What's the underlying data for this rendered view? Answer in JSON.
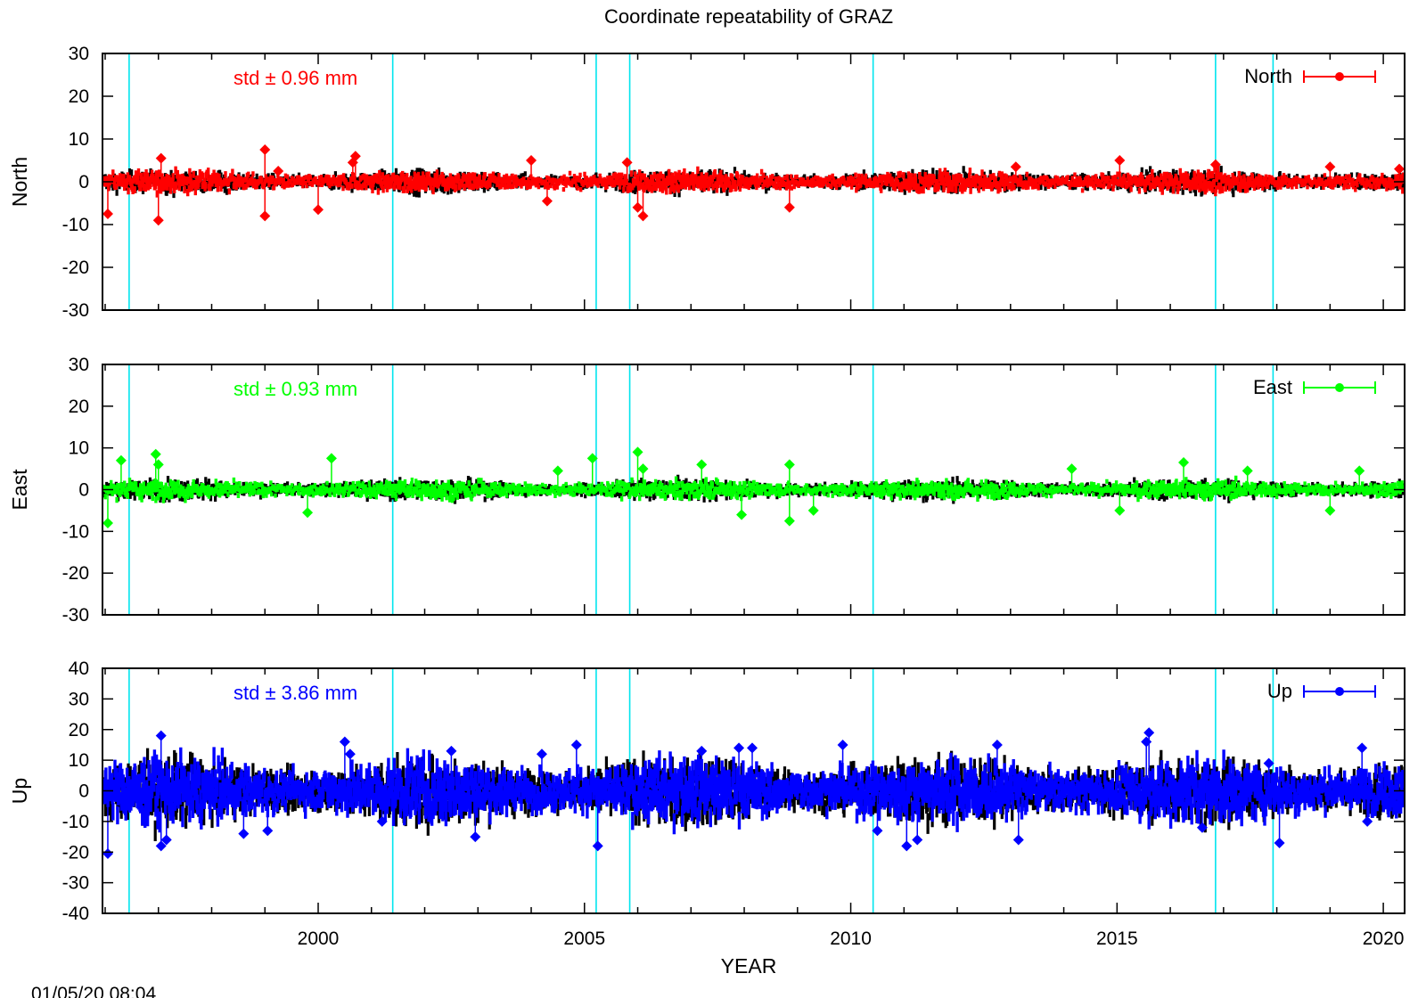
{
  "chart_data": {
    "type": "scatter",
    "title": "Coordinate repeatability of GRAZ",
    "xlabel": "YEAR",
    "timestamp": "01/05/20 08:04",
    "xlim": [
      1995.95,
      2020.4
    ],
    "xticks": [
      2000,
      2005,
      2010,
      2015,
      2020
    ],
    "event_lines": [
      1996.45,
      2001.4,
      2005.22,
      2005.85,
      2010.42,
      2016.85,
      2017.93
    ],
    "event_line_color": "#00e5ee",
    "panels": [
      {
        "ylabel": "North",
        "ylim": [
          -30,
          30
        ],
        "yticks": [
          30,
          20,
          10,
          0,
          -10,
          -20,
          -30
        ],
        "std_text": "std ± 0.96 mm",
        "legend": "North",
        "color": "#ff0000",
        "noise_amplitude": 1.4,
        "outliers": [
          [
            1996.05,
            -7.5
          ],
          [
            1997.0,
            -9
          ],
          [
            1997.05,
            5.5
          ],
          [
            1999.0,
            7.5
          ],
          [
            1999.0,
            -8
          ],
          [
            1999.25,
            2.5
          ],
          [
            2000.0,
            -6.5
          ],
          [
            2000.65,
            4.5
          ],
          [
            2000.7,
            6
          ],
          [
            2004.0,
            5
          ],
          [
            2004.3,
            -4.5
          ],
          [
            2005.8,
            4.5
          ],
          [
            2006.1,
            -8
          ],
          [
            2006.0,
            -6
          ],
          [
            2008.85,
            -6
          ],
          [
            2013.1,
            3.5
          ],
          [
            2015.05,
            5
          ],
          [
            2016.85,
            4
          ],
          [
            2019.0,
            3.5
          ],
          [
            2020.3,
            3
          ]
        ]
      },
      {
        "ylabel": "East",
        "ylim": [
          -30,
          30
        ],
        "yticks": [
          30,
          20,
          10,
          0,
          -10,
          -20,
          -30
        ],
        "std_text": "std ± 0.93 mm",
        "legend": "East",
        "color": "#00ff00",
        "noise_amplitude": 1.3,
        "outliers": [
          [
            1996.05,
            -8
          ],
          [
            1996.3,
            7
          ],
          [
            1996.95,
            8.5
          ],
          [
            1997.0,
            6
          ],
          [
            1999.8,
            -5.5
          ],
          [
            2000.25,
            7.5
          ],
          [
            2004.5,
            4.5
          ],
          [
            2005.15,
            7.5
          ],
          [
            2006.0,
            9
          ],
          [
            2006.1,
            5
          ],
          [
            2007.2,
            6
          ],
          [
            2007.95,
            -6
          ],
          [
            2008.85,
            6
          ],
          [
            2008.85,
            -7.5
          ],
          [
            2009.3,
            -5
          ],
          [
            2014.15,
            5
          ],
          [
            2015.05,
            -5
          ],
          [
            2016.25,
            6.5
          ],
          [
            2017.45,
            4.5
          ],
          [
            2019.0,
            -5
          ],
          [
            2019.55,
            4.5
          ]
        ]
      },
      {
        "ylabel": "Up",
        "ylim": [
          -40,
          40
        ],
        "yticks": [
          40,
          30,
          20,
          10,
          0,
          -10,
          -20,
          -30,
          -40
        ],
        "std_text": "std ± 3.86 mm",
        "legend": "Up",
        "color": "#0000ff",
        "noise_amplitude": 5.5,
        "outliers": [
          [
            1996.05,
            -20.5
          ],
          [
            1997.05,
            18
          ],
          [
            1997.05,
            -18
          ],
          [
            1997.15,
            -16
          ],
          [
            1998.6,
            -14
          ],
          [
            1999.05,
            -13
          ],
          [
            2000.5,
            16
          ],
          [
            2000.6,
            12
          ],
          [
            2001.2,
            -10
          ],
          [
            2002.5,
            13
          ],
          [
            2002.95,
            -15
          ],
          [
            2004.2,
            12
          ],
          [
            2004.85,
            15
          ],
          [
            2005.25,
            -18
          ],
          [
            2007.2,
            13
          ],
          [
            2007.9,
            14
          ],
          [
            2008.15,
            14
          ],
          [
            2009.85,
            15
          ],
          [
            2010.5,
            -13
          ],
          [
            2011.05,
            -18
          ],
          [
            2011.25,
            -16
          ],
          [
            2012.75,
            15
          ],
          [
            2013.15,
            -16
          ],
          [
            2015.6,
            19
          ],
          [
            2015.55,
            16
          ],
          [
            2016.6,
            -12
          ],
          [
            2017.85,
            9
          ],
          [
            2018.05,
            -17
          ],
          [
            2019.6,
            14
          ],
          [
            2019.7,
            -10
          ]
        ]
      }
    ]
  }
}
